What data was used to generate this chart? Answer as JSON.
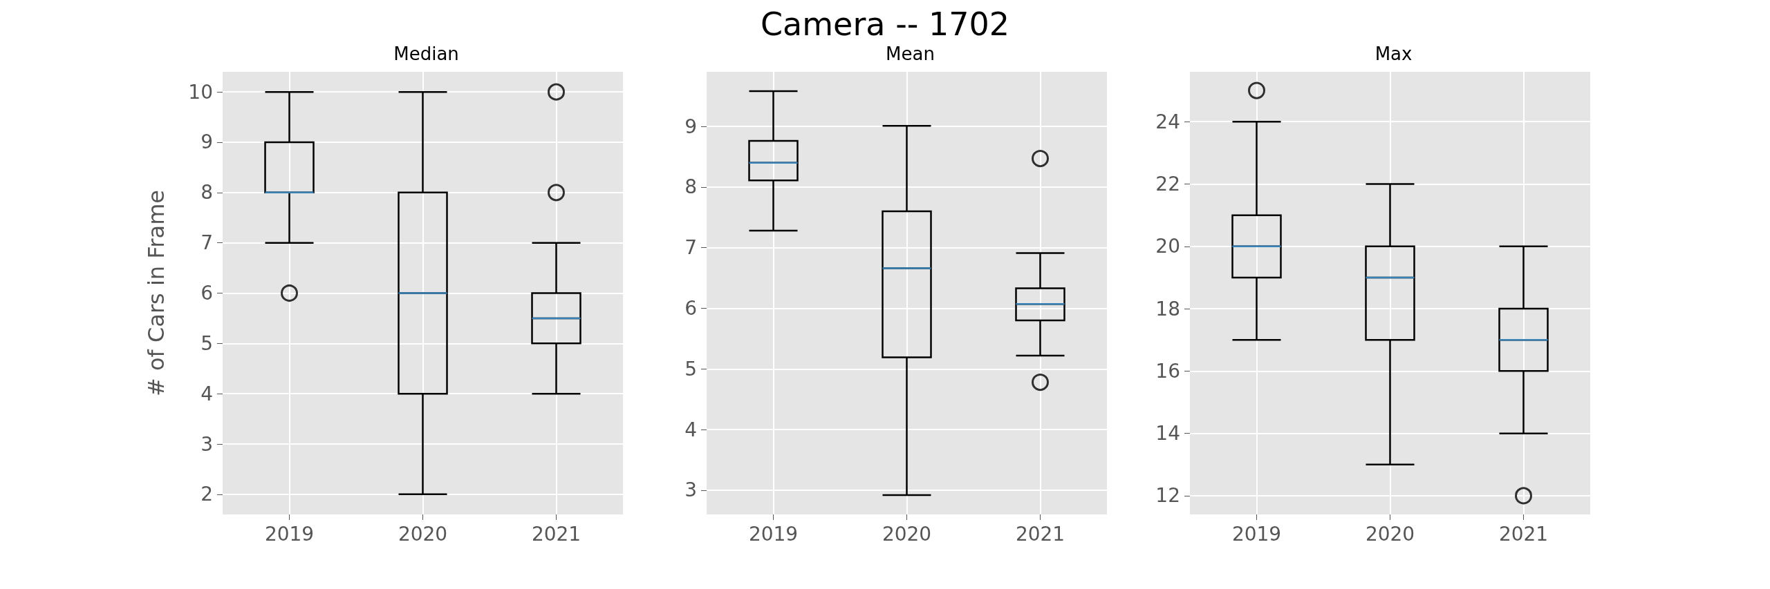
{
  "chart_data": [
    {
      "type": "box",
      "title": "Median",
      "ylabel": "# of Cars in Frame",
      "annotations": [
        "Camera -- 1702"
      ],
      "categories": [
        "2019",
        "2020",
        "2021"
      ],
      "boxes": [
        {
          "low": 7,
          "q1": 8,
          "median": 8,
          "q3": 9,
          "high": 10,
          "outliers": [
            6
          ]
        },
        {
          "low": 2,
          "q1": 4,
          "median": 6,
          "q3": 8,
          "high": 10
        },
        {
          "low": 4,
          "q1": 5,
          "median": 5.5,
          "q3": 6,
          "high": 7,
          "outliers": [
            8,
            10
          ]
        }
      ],
      "ylim": [
        1.6,
        10.4
      ],
      "yticks": [
        2,
        3,
        4,
        5,
        6,
        7,
        8,
        9,
        10
      ],
      "grid": true
    },
    {
      "type": "box",
      "title": "Mean",
      "categories": [
        "2019",
        "2020",
        "2021"
      ],
      "boxes": [
        {
          "low": 7.28,
          "q1": 8.11,
          "median": 8.4,
          "q3": 8.76,
          "high": 9.58
        },
        {
          "low": 2.92,
          "q1": 5.19,
          "median": 6.66,
          "q3": 7.6,
          "high": 9.01
        },
        {
          "low": 5.22,
          "q1": 5.8,
          "median": 6.07,
          "q3": 6.33,
          "high": 6.91,
          "outliers": [
            8.47,
            4.78
          ]
        }
      ],
      "ylim": [
        2.6,
        9.9
      ],
      "yticks": [
        3,
        4,
        5,
        6,
        7,
        8,
        9
      ],
      "grid": true
    },
    {
      "type": "box",
      "title": "Max",
      "categories": [
        "2019",
        "2020",
        "2021"
      ],
      "boxes": [
        {
          "low": 17,
          "q1": 19,
          "median": 20,
          "q3": 21,
          "high": 24,
          "outliers": [
            25
          ]
        },
        {
          "low": 13,
          "q1": 17,
          "median": 19,
          "q3": 20,
          "high": 22
        },
        {
          "low": 14,
          "q1": 16,
          "median": 17,
          "q3": 18,
          "high": 20,
          "outliers": [
            12
          ]
        }
      ],
      "ylim": [
        11.4,
        25.6
      ],
      "yticks": [
        12,
        14,
        16,
        18,
        20,
        22,
        24
      ],
      "grid": true
    }
  ]
}
